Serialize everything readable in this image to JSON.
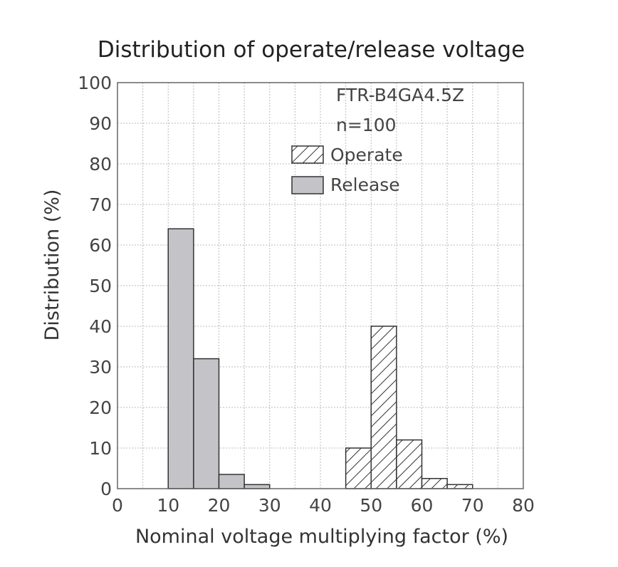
{
  "chart_data": {
    "type": "bar",
    "title": "Distribution of operate/release voltage",
    "xlabel": "Nominal voltage multiplying factor (%)",
    "ylabel": "Distribution (%)",
    "xlim": [
      0,
      80
    ],
    "ylim": [
      0,
      100
    ],
    "x_ticks": [
      "0",
      "10",
      "20",
      "30",
      "40",
      "50",
      "60",
      "70",
      "80"
    ],
    "y_ticks": [
      "0",
      "10",
      "20",
      "30",
      "40",
      "50",
      "60",
      "70",
      "80",
      "90",
      "100"
    ],
    "grid": true,
    "bin_width": 5,
    "annotations": [
      "FTR-B4GA4.5Z",
      "n=100"
    ],
    "legend_position": "top-right",
    "series": [
      {
        "name": "Operate",
        "pattern": "hatched",
        "color": "#ffffff",
        "bins": [
          {
            "x": [
              45,
              50
            ],
            "value": 10
          },
          {
            "x": [
              50,
              55
            ],
            "value": 40
          },
          {
            "x": [
              55,
              60
            ],
            "value": 12
          },
          {
            "x": [
              60,
              65
            ],
            "value": 2.5
          },
          {
            "x": [
              65,
              70
            ],
            "value": 1
          }
        ]
      },
      {
        "name": "Release",
        "pattern": "solid",
        "color": "#c4c4c8",
        "bins": [
          {
            "x": [
              10,
              15
            ],
            "value": 64
          },
          {
            "x": [
              15,
              20
            ],
            "value": 32
          },
          {
            "x": [
              20,
              25
            ],
            "value": 3.5
          },
          {
            "x": [
              25,
              30
            ],
            "value": 1
          }
        ]
      }
    ]
  }
}
